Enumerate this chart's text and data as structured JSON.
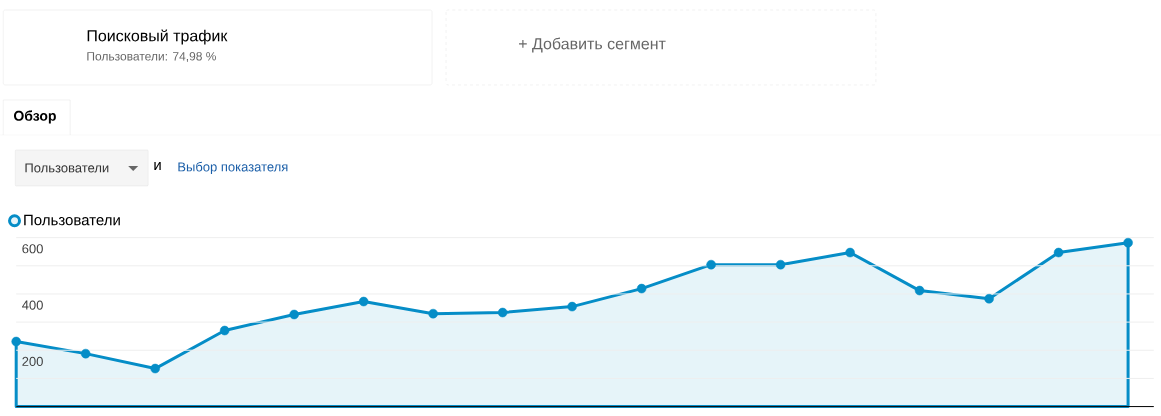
{
  "chart_data": {
    "type": "area",
    "title": "Поисковый трафик",
    "subtitle": "Пользователи: 74,98 %",
    "annotations": [
      "+ Добавить сегмент",
      "Обзор",
      "Пользователи",
      "и",
      "Выбор показателя"
    ],
    "categories": [
      null,
      null,
      null,
      null,
      null,
      null,
      null,
      null,
      null,
      null,
      null,
      null,
      null,
      null,
      null,
      null,
      null
    ],
    "series": [
      {
        "name": "Пользователи",
        "color": "#058dc7",
        "values": [
          231,
          188,
          135,
          270,
          327,
          373,
          330,
          334,
          355,
          419,
          504,
          504,
          547,
          412,
          383,
          547,
          582
        ]
      }
    ],
    "ylim": [
      0,
      600
    ],
    "yticks": [
      {
        "value": 0,
        "label": null
      },
      {
        "value": 100,
        "label": null
      },
      200,
      {
        "value": 300,
        "label": null
      },
      400,
      {
        "value": 500,
        "label": null
      },
      600
    ],
    "grid": "y",
    "legend": "top left",
    "marker": "circle",
    "line_style": "solid",
    "tick_labels": "y"
  }
}
